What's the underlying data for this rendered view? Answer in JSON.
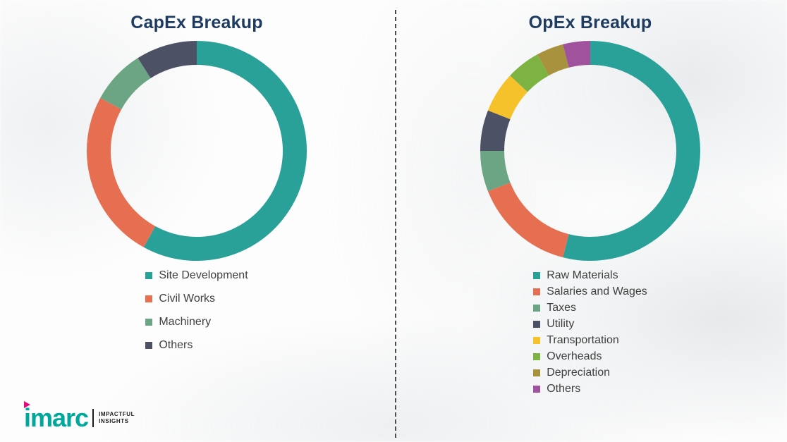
{
  "colors": {
    "title": "#1e3c61",
    "legend_text": "#404040",
    "divider": "#4c4c4c",
    "brand_teal": "#00a79b",
    "brand_magenta": "#e5097f"
  },
  "chart_data": [
    {
      "type": "pie",
      "donut": true,
      "title": "CapEx Breakup",
      "legend_position": "bottom",
      "labels": [
        "Site Development",
        "Civil Works",
        "Machinery",
        "Others"
      ],
      "values": [
        58,
        25,
        8,
        9
      ],
      "colors": [
        "#2aa198",
        "#e76f51",
        "#6ba584",
        "#4d5166"
      ]
    },
    {
      "type": "pie",
      "donut": true,
      "title": "OpEx Breakup",
      "legend_position": "bottom",
      "labels": [
        "Raw Materials",
        "Salaries and Wages",
        "Taxes",
        "Utility",
        "Transportation",
        "Overheads",
        "Depreciation",
        "Others"
      ],
      "values": [
        54,
        15,
        6,
        6,
        6,
        5,
        4,
        4
      ],
      "colors": [
        "#2aa198",
        "#e76f51",
        "#6ba584",
        "#4d5166",
        "#f5c22b",
        "#7cb342",
        "#a8923e",
        "#a0529c"
      ]
    }
  ],
  "logo": {
    "text": "imarc",
    "tagline_line1": "IMPACTFUL",
    "tagline_line2": "INSIGHTS"
  }
}
